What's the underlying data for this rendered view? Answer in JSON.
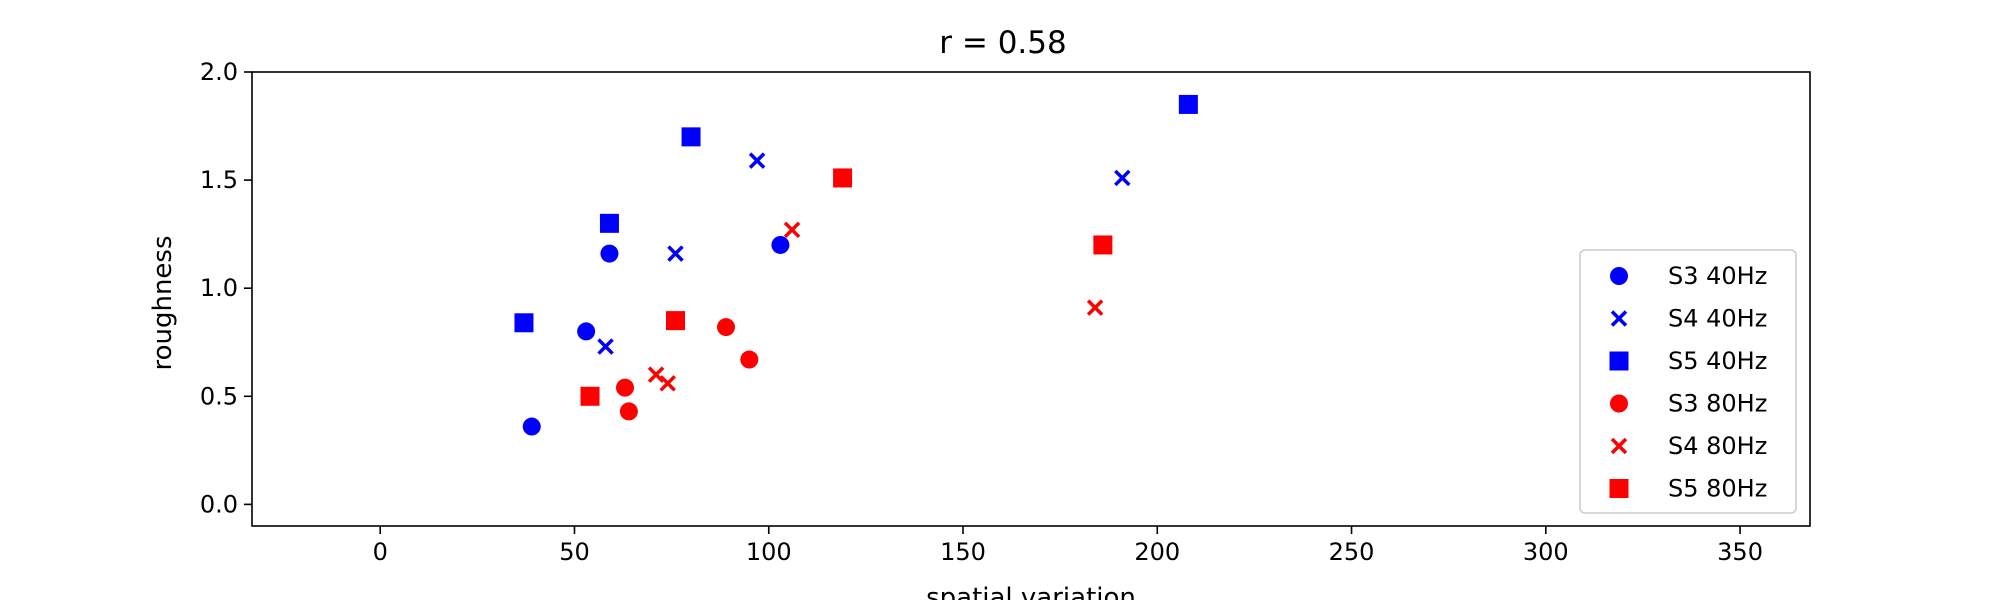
{
  "chart_data": {
    "type": "scatter",
    "title": "r = 0.58",
    "xlabel": "spatial variation",
    "ylabel": "roughness",
    "xlim": [
      -33,
      368
    ],
    "ylim": [
      -0.1,
      2.0
    ],
    "xticks": [
      "0",
      "50",
      "100",
      "150",
      "200",
      "250",
      "300",
      "350"
    ],
    "yticks": [
      "0.0",
      "0.5",
      "1.0",
      "1.5",
      "2.0"
    ],
    "grid": false,
    "legend_position": "lower-right",
    "series": [
      {
        "name": "S3 40Hz",
        "color": "#0000ff",
        "marker": "circle",
        "points": [
          [
            39,
            0.36
          ],
          [
            53,
            0.8
          ],
          [
            59,
            1.16
          ],
          [
            103,
            1.2
          ]
        ]
      },
      {
        "name": "S4 40Hz",
        "color": "#0000ff",
        "marker": "x",
        "points": [
          [
            58,
            0.73
          ],
          [
            76,
            1.16
          ],
          [
            97,
            1.59
          ],
          [
            191,
            1.51
          ]
        ]
      },
      {
        "name": "S5 40Hz",
        "color": "#0000ff",
        "marker": "square",
        "points": [
          [
            37,
            0.84
          ],
          [
            59,
            1.3
          ],
          [
            80,
            1.7
          ],
          [
            208,
            1.85
          ]
        ]
      },
      {
        "name": "S3 80Hz",
        "color": "#ff0000",
        "marker": "circle",
        "points": [
          [
            63,
            0.54
          ],
          [
            64,
            0.43
          ],
          [
            89,
            0.82
          ],
          [
            95,
            0.67
          ]
        ]
      },
      {
        "name": "S4 80Hz",
        "color": "#ff0000",
        "marker": "x",
        "points": [
          [
            71,
            0.6
          ],
          [
            74,
            0.56
          ],
          [
            106,
            1.27
          ],
          [
            184,
            0.91
          ]
        ]
      },
      {
        "name": "S5 80Hz",
        "color": "#ff0000",
        "marker": "square",
        "points": [
          [
            54,
            0.5
          ],
          [
            76,
            0.85
          ],
          [
            119,
            1.51
          ],
          [
            186,
            1.2
          ]
        ]
      }
    ]
  }
}
